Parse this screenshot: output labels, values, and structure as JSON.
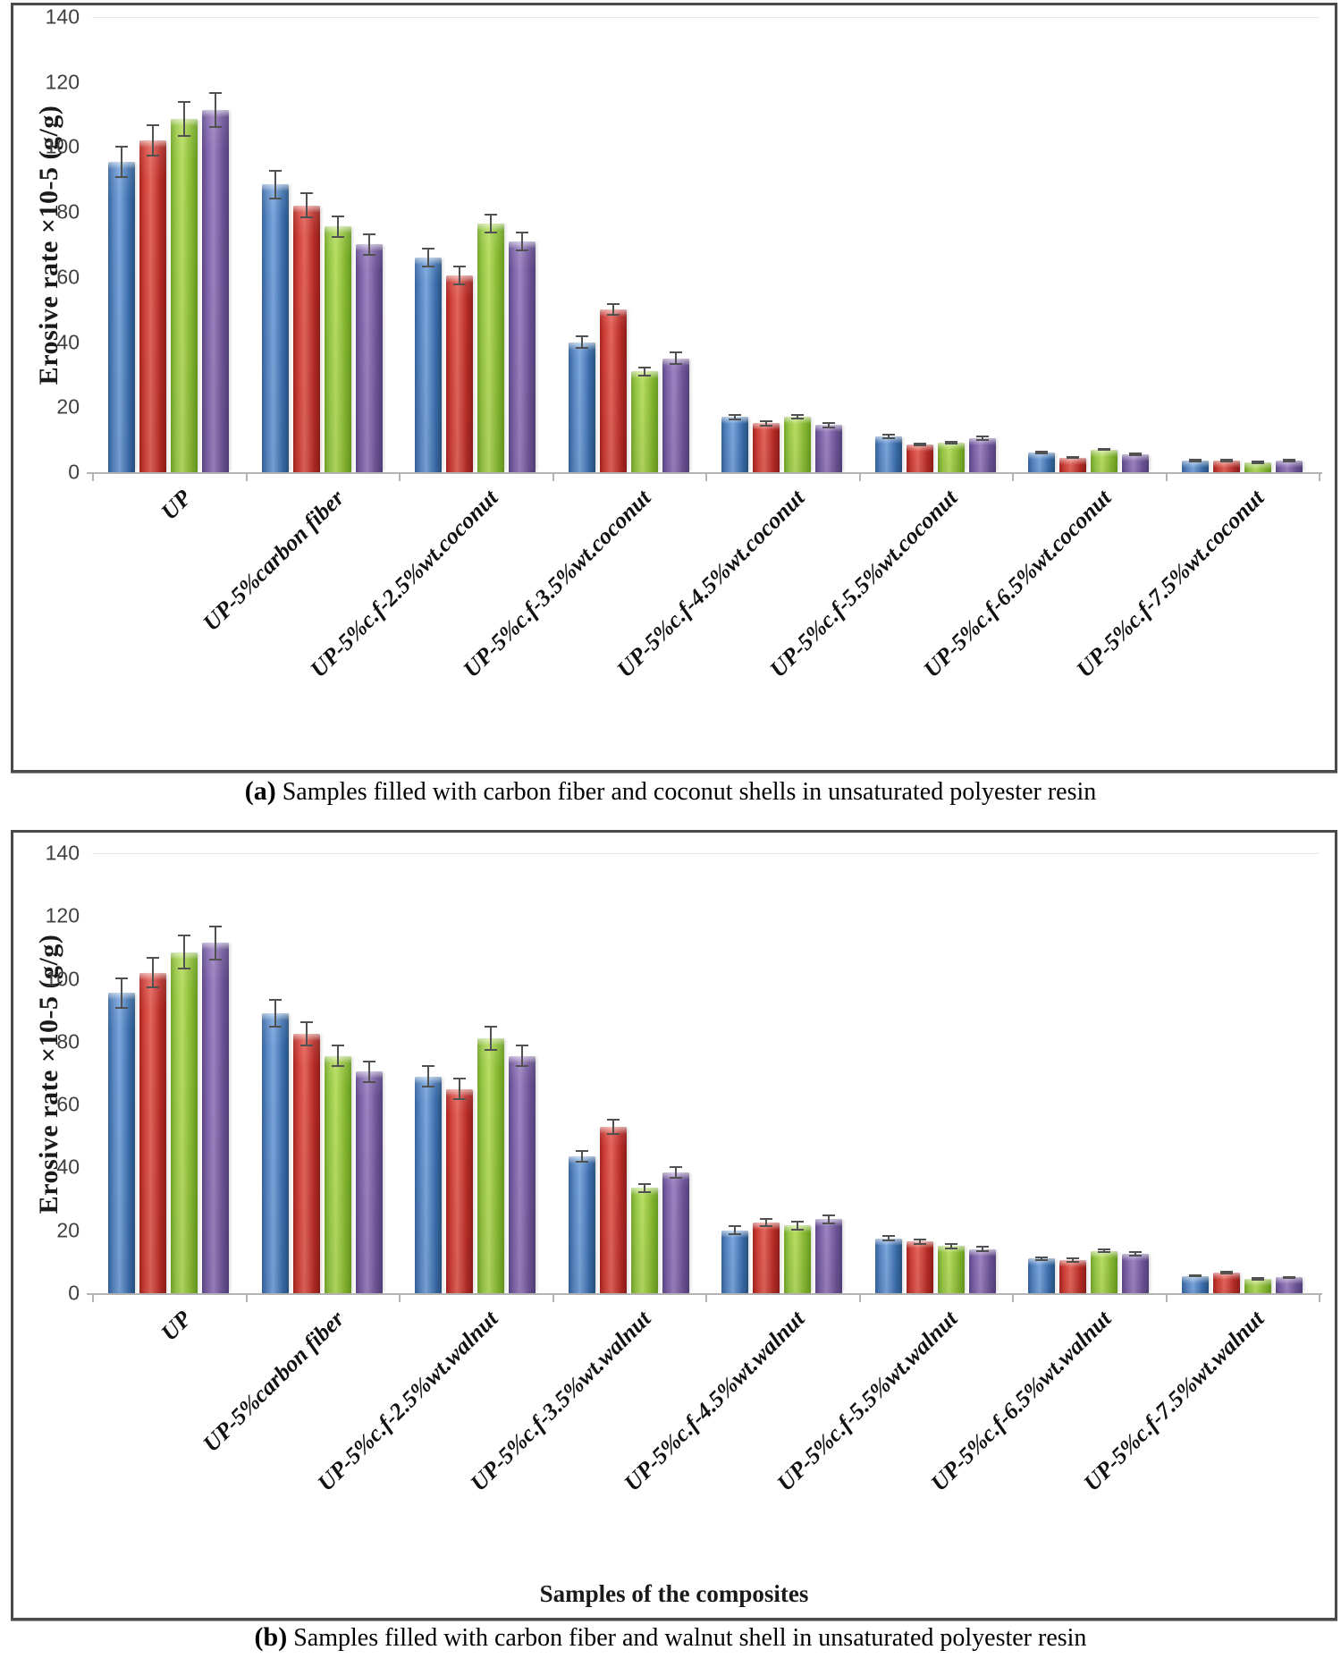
{
  "figure": {
    "caption_a": {
      "label": "(a)",
      "text": "Samples filled with carbon fiber and coconut shells in unsaturated polyester resin"
    },
    "caption_b": {
      "label": "(b)",
      "text": "Samples filled with carbon fiber and  walnut shell in unsaturated polyester resin"
    }
  },
  "colors": {
    "series": [
      "#3f6fb2",
      "#c9302c",
      "#8fc441",
      "#7a61a5"
    ],
    "error_bar": "#515151",
    "axis_line": "#b3b3b3",
    "tick_text": "#3f3f3f"
  },
  "chart_data": [
    {
      "id": "a",
      "type": "bar",
      "title": "",
      "ylabel": "Erosive rate ×10-5 (g/g)",
      "xlabel": "",
      "ylim": [
        0,
        140
      ],
      "yticks": [
        0,
        20,
        40,
        60,
        80,
        100,
        120,
        140
      ],
      "grid": false,
      "legend": "none",
      "categories": [
        "UP",
        "UP-5%carbon fiber",
        "UP-5%c.f-2.5%wt.coconut",
        "UP-5%c.f-3.5%wt.coconut",
        "UP-5%c.f-4.5%wt.coconut",
        "UP-5%c.f-5.5%wt.coconut",
        "UP-5%c.f-6.5%wt.coconut",
        "UP-5%c.f-7.5%wt.coconut"
      ],
      "series": [
        {
          "name": "series-blue",
          "color": "#3f6fb2",
          "values": [
            95.5,
            88.5,
            66,
            40,
            17,
            11,
            6,
            3.5
          ],
          "errors": [
            5,
            4.5,
            3,
            2,
            1,
            0.8,
            0.5,
            0.5
          ]
        },
        {
          "name": "series-red",
          "color": "#c9302c",
          "values": [
            102,
            82,
            60.5,
            50,
            15,
            8.5,
            4.5,
            3.5
          ],
          "errors": [
            5,
            4,
            3,
            2,
            1,
            0.5,
            0.5,
            0.5
          ]
        },
        {
          "name": "series-green",
          "color": "#8fc441",
          "values": [
            108.5,
            75.5,
            76.5,
            31,
            17,
            9,
            7,
            3
          ],
          "errors": [
            5.5,
            3.5,
            3,
            1.5,
            0.8,
            0.5,
            0.5,
            0.5
          ]
        },
        {
          "name": "series-purple",
          "color": "#7a61a5",
          "values": [
            111.5,
            70,
            71,
            35,
            14.5,
            10.5,
            5.5,
            3.5
          ],
          "errors": [
            5.5,
            3.5,
            3,
            2,
            1,
            0.8,
            0.5,
            0.5
          ]
        }
      ]
    },
    {
      "id": "b",
      "type": "bar",
      "title": "",
      "ylabel": "Erosive rate ×10-5 (g/g)",
      "xlabel": "Samples of the composites",
      "ylim": [
        0,
        140
      ],
      "yticks": [
        0,
        20,
        40,
        60,
        80,
        100,
        120,
        140
      ],
      "grid": false,
      "legend": "none",
      "categories": [
        "UP",
        "UP-5%carbon fiber",
        "UP-5%c.f-2.5%wt.walnut",
        "UP-5%c.f-3.5%wt.walnut",
        "UP-5%c.f-4.5%wt.walnut",
        "UP-5%c.f-5.5%wt.walnut",
        "UP-5%c.f-6.5%wt.walnut",
        "UP-5%c.f-7.5%wt.walnut"
      ],
      "series": [
        {
          "name": "series-blue",
          "color": "#3f6fb2",
          "values": [
            95.5,
            89,
            69,
            43.5,
            20,
            17.5,
            11,
            5.5
          ],
          "errors": [
            5,
            4.5,
            3.5,
            2,
            1.5,
            1,
            0.8,
            0.5
          ]
        },
        {
          "name": "series-red",
          "color": "#c9302c",
          "values": [
            102,
            82.5,
            65,
            53,
            22.5,
            16.5,
            10.5,
            6.5
          ],
          "errors": [
            5,
            4,
            3.5,
            2.5,
            1.5,
            1,
            0.8,
            0.5
          ]
        },
        {
          "name": "series-green",
          "color": "#8fc441",
          "values": [
            108.5,
            75.5,
            81,
            33.5,
            21.5,
            15,
            13.5,
            4.5
          ],
          "errors": [
            5.5,
            3.5,
            4,
            1.5,
            1.5,
            1,
            0.8,
            0.5
          ]
        },
        {
          "name": "series-purple",
          "color": "#7a61a5",
          "values": [
            111.5,
            70.5,
            75.5,
            38.5,
            23.5,
            14,
            12.5,
            5
          ],
          "errors": [
            5.5,
            3.5,
            3.5,
            2,
            1.5,
            1,
            0.8,
            0.5
          ]
        }
      ]
    }
  ]
}
